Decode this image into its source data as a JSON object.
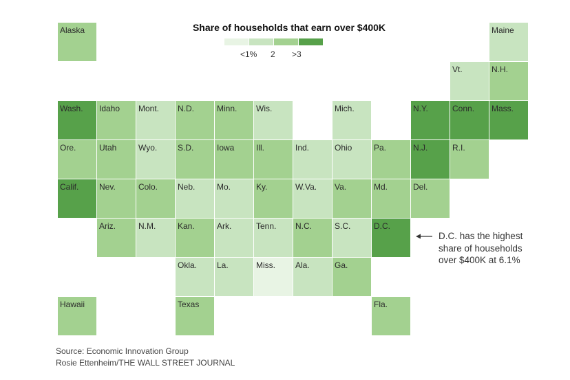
{
  "chart_data": {
    "type": "heatmap",
    "title": "Share of households that earn over $400K",
    "legend": {
      "placement": "top-center",
      "bins": [
        {
          "label": "<1%",
          "color": "#e8f4e4"
        },
        {
          "label": "2",
          "color": "#c8e4c0"
        },
        {
          "label": "",
          "color": "#a3d190"
        },
        {
          "label": ">3",
          "color": "#57a14a"
        }
      ]
    },
    "cells": [
      {
        "state": "Alaska",
        "row": 0,
        "col": 0,
        "level": 2
      },
      {
        "state": "Maine",
        "row": 0,
        "col": 11,
        "level": 1
      },
      {
        "state": "Vt.",
        "row": 1,
        "col": 10,
        "level": 1
      },
      {
        "state": "N.H.",
        "row": 1,
        "col": 11,
        "level": 2
      },
      {
        "state": "Wash.",
        "row": 2,
        "col": 0,
        "level": 3
      },
      {
        "state": "Idaho",
        "row": 2,
        "col": 1,
        "level": 2
      },
      {
        "state": "Mont.",
        "row": 2,
        "col": 2,
        "level": 1
      },
      {
        "state": "N.D.",
        "row": 2,
        "col": 3,
        "level": 2
      },
      {
        "state": "Minn.",
        "row": 2,
        "col": 4,
        "level": 2
      },
      {
        "state": "Wis.",
        "row": 2,
        "col": 5,
        "level": 1
      },
      {
        "state": "Mich.",
        "row": 2,
        "col": 7,
        "level": 1
      },
      {
        "state": "N.Y.",
        "row": 2,
        "col": 9,
        "level": 3
      },
      {
        "state": "Conn.",
        "row": 2,
        "col": 10,
        "level": 3
      },
      {
        "state": "Mass.",
        "row": 2,
        "col": 11,
        "level": 3
      },
      {
        "state": "Ore.",
        "row": 3,
        "col": 0,
        "level": 2
      },
      {
        "state": "Utah",
        "row": 3,
        "col": 1,
        "level": 2
      },
      {
        "state": "Wyo.",
        "row": 3,
        "col": 2,
        "level": 1
      },
      {
        "state": "S.D.",
        "row": 3,
        "col": 3,
        "level": 2
      },
      {
        "state": "Iowa",
        "row": 3,
        "col": 4,
        "level": 2
      },
      {
        "state": "Ill.",
        "row": 3,
        "col": 5,
        "level": 2
      },
      {
        "state": "Ind.",
        "row": 3,
        "col": 6,
        "level": 1
      },
      {
        "state": "Ohio",
        "row": 3,
        "col": 7,
        "level": 1
      },
      {
        "state": "Pa.",
        "row": 3,
        "col": 8,
        "level": 2
      },
      {
        "state": "N.J.",
        "row": 3,
        "col": 9,
        "level": 3
      },
      {
        "state": "R.I.",
        "row": 3,
        "col": 10,
        "level": 2
      },
      {
        "state": "Calif.",
        "row": 4,
        "col": 0,
        "level": 3
      },
      {
        "state": "Nev.",
        "row": 4,
        "col": 1,
        "level": 2
      },
      {
        "state": "Colo.",
        "row": 4,
        "col": 2,
        "level": 2
      },
      {
        "state": "Neb.",
        "row": 4,
        "col": 3,
        "level": 1
      },
      {
        "state": "Mo.",
        "row": 4,
        "col": 4,
        "level": 1
      },
      {
        "state": "Ky.",
        "row": 4,
        "col": 5,
        "level": 2
      },
      {
        "state": "W.Va.",
        "row": 4,
        "col": 6,
        "level": 1
      },
      {
        "state": "Va.",
        "row": 4,
        "col": 7,
        "level": 2
      },
      {
        "state": "Md.",
        "row": 4,
        "col": 8,
        "level": 2
      },
      {
        "state": "Del.",
        "row": 4,
        "col": 9,
        "level": 2
      },
      {
        "state": "Ariz.",
        "row": 5,
        "col": 1,
        "level": 2
      },
      {
        "state": "N.M.",
        "row": 5,
        "col": 2,
        "level": 1
      },
      {
        "state": "Kan.",
        "row": 5,
        "col": 3,
        "level": 2
      },
      {
        "state": "Ark.",
        "row": 5,
        "col": 4,
        "level": 1
      },
      {
        "state": "Tenn.",
        "row": 5,
        "col": 5,
        "level": 1
      },
      {
        "state": "N.C.",
        "row": 5,
        "col": 6,
        "level": 2
      },
      {
        "state": "S.C.",
        "row": 5,
        "col": 7,
        "level": 1
      },
      {
        "state": "D.C.",
        "row": 5,
        "col": 8,
        "level": 3
      },
      {
        "state": "Okla.",
        "row": 6,
        "col": 3,
        "level": 1
      },
      {
        "state": "La.",
        "row": 6,
        "col": 4,
        "level": 1
      },
      {
        "state": "Miss.",
        "row": 6,
        "col": 5,
        "level": 0
      },
      {
        "state": "Ala.",
        "row": 6,
        "col": 6,
        "level": 1
      },
      {
        "state": "Ga.",
        "row": 6,
        "col": 7,
        "level": 2
      },
      {
        "state": "Hawaii",
        "row": 7,
        "col": 0,
        "level": 2
      },
      {
        "state": "Texas",
        "row": 7,
        "col": 3,
        "level": 2
      },
      {
        "state": "Fla.",
        "row": 7,
        "col": 8,
        "level": 2
      }
    ],
    "annotation": {
      "target": "D.C.",
      "lines": [
        "D.C. has the highest",
        "share of households",
        "over $400K at 6.1%"
      ]
    }
  },
  "footer": {
    "source": "Source: Economic Innovation Group",
    "credit": "Rosie Ettenheim/THE WALL STREET JOURNAL"
  }
}
